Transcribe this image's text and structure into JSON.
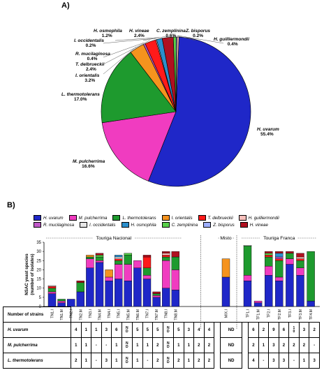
{
  "panel_a_label": "A)",
  "panel_b_label": "B)",
  "chart_data": [
    {
      "type": "pie",
      "slices": [
        {
          "label": "H. uvarum",
          "pct_label": "55.4%",
          "value": 55.4,
          "color": "#1f27c8"
        },
        {
          "label": "M. pulcherrima",
          "pct_label": "16.6%",
          "value": 16.6,
          "color": "#f03cc0"
        },
        {
          "label": "L. thermotolerans",
          "pct_label": "17.0%",
          "value": 17.0,
          "color": "#1e9a2e"
        },
        {
          "label": "I. orientalis",
          "pct_label": "3.2%",
          "value": 3.2,
          "color": "#f5931e"
        },
        {
          "label": "R. mucilaginosa",
          "pct_label": "0.4%",
          "value": 0.4,
          "color": "#c058c8"
        },
        {
          "label": "T. delbrueckii",
          "pct_label": "2.4%",
          "value": 2.4,
          "color": "#ff1a1a"
        },
        {
          "label": "I. occidentalis",
          "pct_label": "0.2%",
          "value": 0.2,
          "color": "#e6e6e6"
        },
        {
          "label": "H. osmophila",
          "pct_label": "1.2%",
          "value": 1.2,
          "color": "#2b8fcc"
        },
        {
          "label": "H. vineae",
          "pct_label": "2.4%",
          "value": 2.4,
          "color": "#b01020"
        },
        {
          "label": "C. zemplinina",
          "pct_label": "0.6%",
          "value": 0.6,
          "color": "#58d04a"
        },
        {
          "label": "Z. bisporus",
          "pct_label": "0.2%",
          "value": 0.2,
          "color": "#9fb0ff"
        },
        {
          "label": "H. guilliermondii",
          "pct_label": "0.4%",
          "value": 0.4,
          "color": "#f9c0bc"
        }
      ]
    },
    {
      "type": "bar",
      "stacked": true,
      "ylabel": "NSAC yeast species (number of isolates)",
      "ylim": [
        0,
        35
      ],
      "yticks": [
        "0",
        "5",
        "10",
        "15",
        "20",
        "25",
        "30",
        "35"
      ],
      "groups": [
        "Touriga Nacional",
        "Misto",
        "Touriga Franca"
      ],
      "legend": [
        [
          "H. uvarum",
          "M. pulcherrima",
          "L. thermotolerans",
          "I. orientalis",
          "T. delbrueckii",
          "H. guilliermondii"
        ],
        [
          "R. mucilaginosa",
          "I. occidentalis",
          "H. osmophila",
          "C. zemplinina",
          "Z. bisporus",
          "H. vineae"
        ]
      ],
      "categories": [
        "TN1.I",
        "TN1.M",
        "TN2.I",
        "TN2.M",
        "TN3.I",
        "TN4.M",
        "TN4.I",
        "TN5.I",
        "TN5.M",
        "TN6.M",
        "TN7.I",
        "TN7.M",
        "TN8.I",
        "TN8.M",
        "MIX.I",
        "TF1.I",
        "TF1.M",
        "TF2.I",
        "TF2.M",
        "TF3.I",
        "TF3.M",
        "TF4.M"
      ],
      "series": [
        {
          "name": "H. uvarum",
          "color": "#1f27c8",
          "values": [
            7,
            2,
            4,
            8,
            21,
            24,
            14,
            15,
            14,
            21,
            15,
            5,
            10,
            9,
            16,
            14,
            2,
            17,
            14,
            23,
            17,
            3
          ]
        },
        {
          "name": "M. pulcherrima",
          "color": "#f03cc0",
          "values": [
            1,
            1,
            0,
            0,
            5,
            1,
            2,
            8,
            9,
            4,
            2,
            1,
            15,
            11,
            0,
            3,
            1,
            5,
            2,
            3,
            4,
            0
          ]
        },
        {
          "name": "L. thermotolerans",
          "color": "#1e9a2e",
          "values": [
            2,
            1,
            0,
            5,
            1,
            2,
            0,
            2,
            5,
            0,
            4,
            1,
            2,
            7,
            0,
            16,
            0,
            5,
            9,
            3,
            4,
            27
          ]
        },
        {
          "name": "I. orientalis",
          "color": "#f5931e",
          "values": [
            0,
            0,
            0,
            0,
            1,
            0,
            4,
            0,
            0,
            0,
            0,
            0,
            0,
            0,
            10,
            0,
            0,
            0,
            0,
            0,
            0,
            0
          ]
        },
        {
          "name": "T. delbrueckii",
          "color": "#ff1a1a",
          "values": [
            1,
            0,
            0,
            0,
            0,
            0,
            0,
            1,
            0,
            0,
            6,
            0,
            1,
            0,
            0,
            0,
            0,
            1,
            1,
            0,
            1,
            0
          ]
        },
        {
          "name": "H. guilliermondii",
          "color": "#f9c0bc",
          "values": [
            0,
            0,
            0,
            0,
            0,
            0,
            0,
            0,
            0,
            0,
            0,
            0,
            1,
            0,
            0,
            0,
            0,
            0,
            0,
            0,
            1,
            0
          ]
        },
        {
          "name": "R. mucilaginosa",
          "color": "#c058c8",
          "values": [
            0,
            0,
            0,
            0,
            0,
            0,
            0,
            0,
            0,
            0,
            0,
            0,
            0,
            0,
            0,
            0,
            0,
            0,
            1,
            0,
            0,
            0
          ]
        },
        {
          "name": "I. occidentalis",
          "color": "#e6e6e6",
          "values": [
            0,
            0,
            0,
            0,
            0,
            0,
            0,
            1,
            0,
            0,
            0,
            0,
            0,
            0,
            0,
            0,
            0,
            0,
            0,
            0,
            0,
            0
          ]
        },
        {
          "name": "H. osmophila",
          "color": "#2b8fcc",
          "values": [
            0,
            0,
            0,
            0,
            0,
            0,
            0,
            1,
            0,
            0,
            0,
            0,
            0,
            0,
            0,
            0,
            0,
            0,
            2,
            0,
            0,
            0
          ]
        },
        {
          "name": "C. zemplinina",
          "color": "#58d04a",
          "values": [
            0,
            0,
            0,
            0,
            0,
            1,
            0,
            0,
            1,
            0,
            0,
            0,
            0,
            0,
            0,
            0,
            0,
            1,
            0,
            0,
            0,
            0
          ]
        },
        {
          "name": "Z. bisporus",
          "color": "#9fb0ff",
          "values": [
            0,
            0,
            0,
            0,
            0,
            0,
            0,
            0,
            0,
            0,
            0,
            0,
            0,
            0,
            0,
            0,
            0,
            0,
            0,
            0,
            0,
            0
          ]
        },
        {
          "name": "H. vineae",
          "color": "#b01020",
          "values": [
            0,
            0,
            0,
            1,
            0,
            1,
            0,
            0,
            0,
            0,
            1,
            1,
            1,
            3,
            0,
            0,
            0,
            1,
            1,
            1,
            2,
            0
          ]
        }
      ],
      "top_white_cap": [
        1,
        0,
        0,
        0,
        0,
        0,
        0,
        0,
        0,
        0,
        0,
        0,
        0,
        0,
        0,
        1,
        0,
        0,
        0,
        0,
        0,
        0
      ]
    }
  ],
  "table": {
    "header": "Number of strains",
    "rows": [
      {
        "label": "H. uvarum",
        "left": [
          "4",
          "1",
          "1",
          "3",
          "6",
          "N D",
          "5",
          "5",
          "5",
          "N D",
          "5",
          "3",
          "4",
          "4"
        ],
        "mix": "ND",
        "right": [
          "6",
          "2",
          "9",
          "6",
          "1 0",
          "3",
          "2"
        ]
      },
      {
        "label": "M. pulcherrima",
        "left": [
          "1",
          "1",
          "-",
          "-",
          "1",
          "N D",
          "1",
          "1",
          "2",
          "N D",
          "1",
          "1",
          "2",
          "2"
        ],
        "mix": "ND",
        "right": [
          "2",
          "1",
          "3",
          "2",
          "2",
          "2",
          "-"
        ]
      },
      {
        "label": "L. thermotolerans",
        "left": [
          "2",
          "1",
          "-",
          "3",
          "1",
          "N D",
          "1",
          "-",
          "2",
          "N D",
          "2",
          "1",
          "2",
          "2"
        ],
        "mix": "ND",
        "right": [
          "4",
          "-",
          "3",
          "3",
          "-",
          "1",
          "3"
        ]
      }
    ]
  }
}
